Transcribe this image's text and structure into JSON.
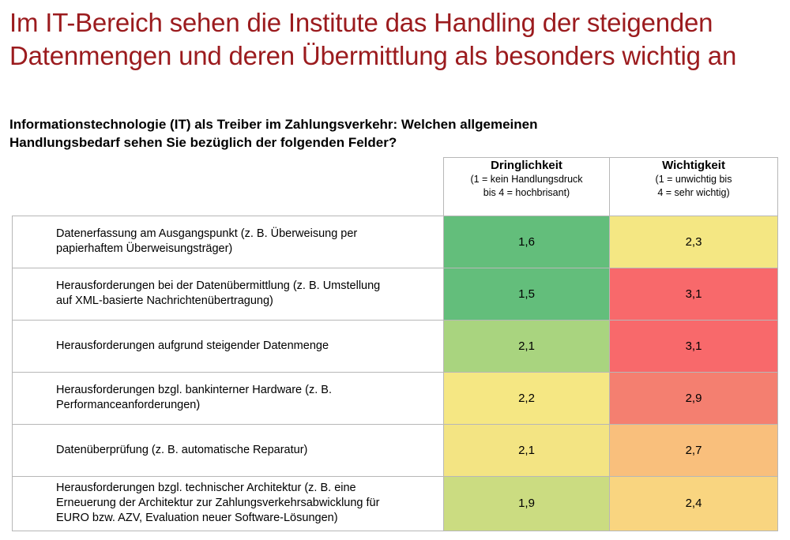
{
  "headline": {
    "line1": "Im IT-Bereich sehen die Institute das Handling der steigenden",
    "line2": "Datenmengen und deren Übermittlung als besonders wichtig an"
  },
  "question": {
    "line1": "Informationstechnologie (IT) als Treiber im Zahlungsverkehr: Welchen allgemeinen",
    "line2": "Handlungsbedarf sehen Sie bezüglich der folgenden Felder?"
  },
  "columns": [
    {
      "title": "Dringlichkeit",
      "sub1": "(1 = kein Handlungsdruck",
      "sub2": "bis 4 = hochbrisant)"
    },
    {
      "title": "Wichtigkeit",
      "sub1": "(1 = unwichtig bis",
      "sub2": "4 = sehr wichtig)"
    }
  ],
  "chart_data": {
    "type": "table",
    "title": "Im IT-Bereich sehen die Institute das Handling der steigenden Datenmengen und deren Übermittlung als besonders wichtig an",
    "columns": [
      "Dringlichkeit",
      "Wichtigkeit"
    ],
    "rows": [
      {
        "label_lines": [
          "Datenerfassung am Ausgangspunkt (z. B. Überweisung per",
          "papierhaftem Überweisungsträger)"
        ],
        "dringlichkeit": "1,6",
        "wichtigkeit": "2,3",
        "color_dringlichkeit": "#63be7b",
        "color_wichtigkeit": "#f4e783"
      },
      {
        "label_lines": [
          "Herausforderungen bei der Datenübermittlung (z. B. Umstellung",
          "auf XML-basierte Nachrichtenübertragung)"
        ],
        "dringlichkeit": "1,5",
        "wichtigkeit": "3,1",
        "color_dringlichkeit": "#63be7b",
        "color_wichtigkeit": "#f8696b"
      },
      {
        "label_lines": [
          "Herausforderungen aufgrund steigender Datenmenge"
        ],
        "dringlichkeit": "2,1",
        "wichtigkeit": "3,1",
        "color_dringlichkeit": "#a9d47f",
        "color_wichtigkeit": "#f8696b"
      },
      {
        "label_lines": [
          "Herausforderungen bzgl. bankinterner Hardware (z. B.",
          "Performanceanforderungen)"
        ],
        "dringlichkeit": "2,2",
        "wichtigkeit": "2,9",
        "color_dringlichkeit": "#f5e783",
        "color_wichtigkeit": "#f47f70"
      },
      {
        "label_lines": [
          "Datenüberprüfung (z. B. automatische Reparatur)"
        ],
        "dringlichkeit": "2,1",
        "wichtigkeit": "2,7",
        "color_dringlichkeit": "#f3e483",
        "color_wichtigkeit": "#f9bf7c"
      },
      {
        "label_lines": [
          "Herausforderungen bzgl. technischer Architektur (z. B. eine",
          "Erneuerung der Architektur zur Zahlungsverkehrsabwicklung für",
          "EURO bzw. AZV, Evaluation neuer Software-Lösungen)"
        ],
        "dringlichkeit": "1,9",
        "wichtigkeit": "2,4",
        "color_dringlichkeit": "#cbdc81",
        "color_wichtigkeit": "#f9d580"
      }
    ]
  }
}
